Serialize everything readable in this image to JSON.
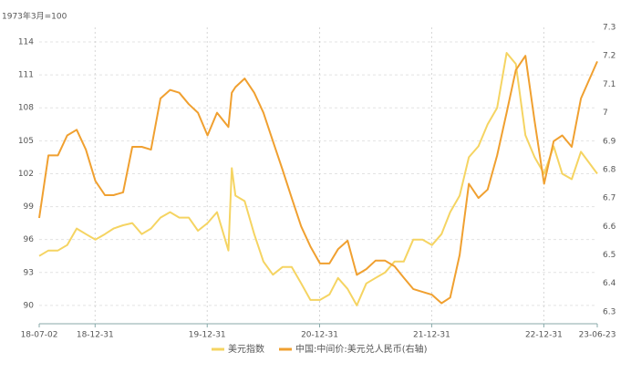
{
  "chart_data": {
    "type": "line",
    "y_label": "1973年3月=100",
    "x": [
      "2018-07-02",
      "2018-08-01",
      "2018-09-01",
      "2018-10-01",
      "2018-11-01",
      "2018-12-01",
      "2019-01-01",
      "2019-02-01",
      "2019-03-01",
      "2019-04-01",
      "2019-05-01",
      "2019-06-01",
      "2019-07-01",
      "2019-08-01",
      "2019-09-01",
      "2019-10-01",
      "2019-11-01",
      "2019-12-01",
      "2020-01-01",
      "2020-02-01",
      "2020-03-09",
      "2020-03-20",
      "2020-04-01",
      "2020-05-01",
      "2020-06-01",
      "2020-07-01",
      "2020-08-01",
      "2020-09-01",
      "2020-10-01",
      "2020-11-01",
      "2020-12-01",
      "2021-01-01",
      "2021-02-01",
      "2021-03-01",
      "2021-04-01",
      "2021-05-01",
      "2021-06-01",
      "2021-07-01",
      "2021-08-01",
      "2021-09-01",
      "2021-10-01",
      "2021-11-01",
      "2021-12-01",
      "2022-01-01",
      "2022-02-01",
      "2022-03-01",
      "2022-04-01",
      "2022-05-01",
      "2022-06-01",
      "2022-07-01",
      "2022-08-01",
      "2022-09-01",
      "2022-10-01",
      "2022-11-01",
      "2022-12-01",
      "2023-01-01",
      "2023-02-01",
      "2023-03-01",
      "2023-04-01",
      "2023-05-01",
      "2023-06-23"
    ],
    "series": [
      {
        "name": "美元指数",
        "color": "#f5d462",
        "axis": "y",
        "values": [
          94.5,
          95,
          95,
          95.5,
          97,
          96.5,
          96,
          96.5,
          97,
          97.3,
          97.5,
          96.5,
          97,
          98,
          98.5,
          98,
          98,
          96.8,
          97.5,
          98.5,
          95,
          102.5,
          100,
          99.5,
          96.5,
          94,
          92.8,
          93.5,
          93.5,
          92,
          90.5,
          90.5,
          91,
          92.5,
          91.5,
          90,
          92,
          92.5,
          93,
          94,
          94,
          96,
          96,
          95.5,
          96.5,
          98.5,
          100,
          103.5,
          104.5,
          106.5,
          108,
          113,
          112,
          105.5,
          103.5,
          102,
          104.5,
          102,
          101.5,
          104,
          102
        ]
      },
      {
        "name": "中国:中间价:美元兑人民币(右轴)",
        "color": "#f0a030",
        "axis": "y2",
        "values": [
          6.63,
          6.85,
          6.85,
          6.92,
          6.94,
          6.87,
          6.76,
          6.71,
          6.71,
          6.72,
          6.88,
          6.88,
          6.87,
          7.05,
          7.08,
          7.07,
          7.03,
          7.0,
          6.92,
          7.0,
          6.95,
          7.07,
          7.09,
          7.12,
          7.07,
          7.0,
          6.9,
          6.8,
          6.7,
          6.6,
          6.53,
          6.47,
          6.47,
          6.52,
          6.55,
          6.43,
          6.45,
          6.48,
          6.48,
          6.46,
          6.42,
          6.38,
          6.37,
          6.36,
          6.33,
          6.35,
          6.5,
          6.75,
          6.7,
          6.73,
          6.85,
          7.0,
          7.15,
          7.2,
          6.97,
          6.75,
          6.9,
          6.92,
          6.88,
          7.05,
          7.18
        ]
      }
    ],
    "xlim": [
      "2018-07-02",
      "2023-06-23"
    ],
    "xticks": [
      {
        "value": "2018-07-02",
        "label": "18-07-02"
      },
      {
        "value": "2018-12-31",
        "label": "18-12-31"
      },
      {
        "value": "2019-12-31",
        "label": "19-12-31"
      },
      {
        "value": "2020-12-31",
        "label": "20-12-31"
      },
      {
        "value": "2021-12-31",
        "label": "21-12-31"
      },
      {
        "value": "2022-12-31",
        "label": "22-12-31"
      },
      {
        "value": "2023-06-23",
        "label": "23-06-23"
      }
    ],
    "ylim": [
      88.33,
      115.33
    ],
    "yticks": [
      90,
      93,
      96,
      99,
      102,
      105,
      108,
      111,
      114
    ],
    "y2lim": [
      6.258,
      7.3
    ],
    "y2ticks": [
      6.3,
      6.4,
      6.5,
      6.6,
      6.7,
      6.8,
      6.9,
      7,
      7.1,
      7.2,
      7.3
    ],
    "grid": true,
    "legend": "bottom"
  }
}
